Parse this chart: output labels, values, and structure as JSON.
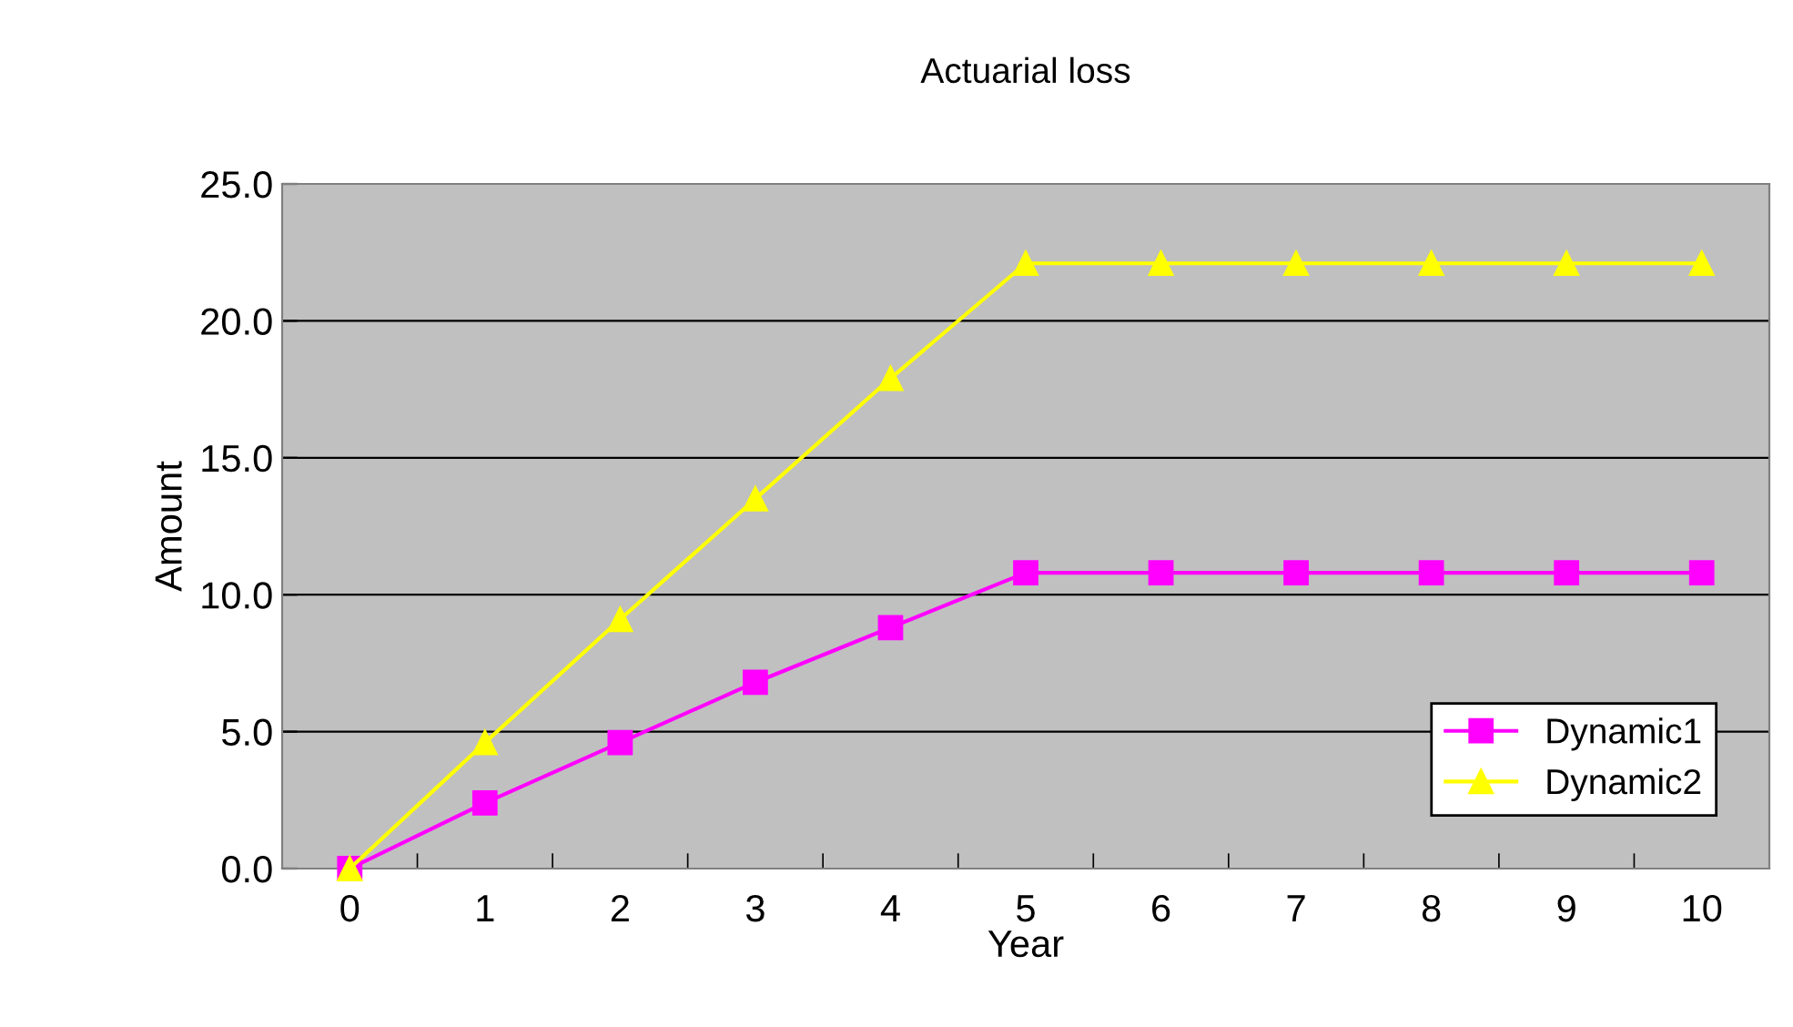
{
  "chart_data": {
    "type": "line",
    "title": "Actuarial loss",
    "xlabel": "Year",
    "ylabel": "Amount",
    "categories": [
      "0",
      "1",
      "2",
      "3",
      "4",
      "5",
      "6",
      "7",
      "8",
      "9",
      "10"
    ],
    "series": [
      {
        "name": "Dynamic1",
        "color": "#ff00ff",
        "marker": "square",
        "values": [
          0,
          2.4,
          4.6,
          6.8,
          8.8,
          10.8,
          10.8,
          10.8,
          10.8,
          10.8,
          10.8
        ]
      },
      {
        "name": "Dynamic2",
        "color": "#ffff00",
        "marker": "triangle",
        "values": [
          0,
          4.6,
          9.1,
          13.5,
          17.9,
          22.1,
          22.1,
          22.1,
          22.1,
          22.1,
          22.1
        ]
      }
    ],
    "ylim": [
      0,
      25
    ],
    "yticks": [
      {
        "value": 0,
        "label": "0.0"
      },
      {
        "value": 5,
        "label": "5.0"
      },
      {
        "value": 10,
        "label": "10.0"
      },
      {
        "value": 15,
        "label": "15.0"
      },
      {
        "value": 20,
        "label": "20.0"
      },
      {
        "value": 25,
        "label": "25.0"
      }
    ],
    "grid": "y",
    "legend": "bottom right",
    "line_style": "solid"
  }
}
